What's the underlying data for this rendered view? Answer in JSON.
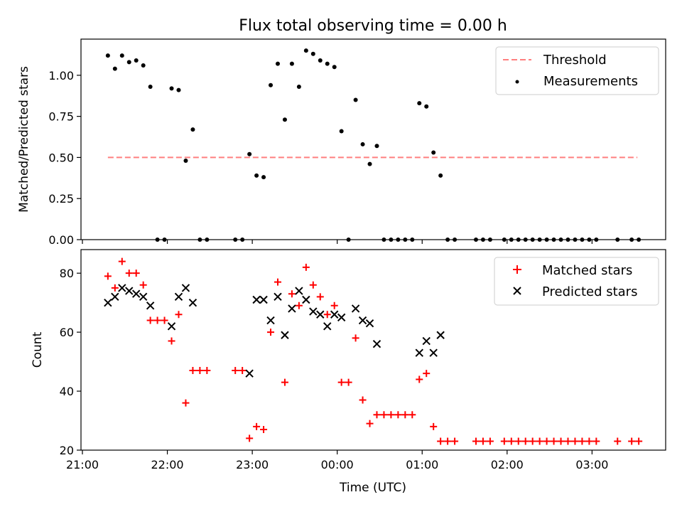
{
  "title": "Flux total observing time = 0.00 h",
  "colors": {
    "threshold": "#ff7f7f",
    "measurement": "#000000",
    "matched": "#ff0000",
    "predicted": "#000000"
  },
  "chart_data": [
    {
      "type": "scatter",
      "title": "Flux total observing time = 0.00 h",
      "xlabel": "",
      "ylabel": "Matched/Predicted stars",
      "xlim": [
        "2021-01-01T20:59",
        "2021-01-02T03:52"
      ],
      "ylim": [
        0,
        1.22
      ],
      "yticks": [
        0.0,
        0.25,
        0.5,
        0.75,
        1.0
      ],
      "ytick_labels": [
        "0.00",
        "0.25",
        "0.50",
        "0.75",
        "1.00"
      ],
      "legend": {
        "position": "top-right",
        "entries": [
          "Threshold",
          "Measurements"
        ]
      },
      "threshold": {
        "name": "Threshold",
        "y": 0.5,
        "x_start": "21:18",
        "x_end": "03:32"
      },
      "series": [
        {
          "name": "Measurements",
          "marker": "dot",
          "points": [
            [
              "21:18",
              1.12
            ],
            [
              "21:23",
              1.04
            ],
            [
              "21:28",
              1.12
            ],
            [
              "21:33",
              1.08
            ],
            [
              "21:38",
              1.09
            ],
            [
              "21:43",
              1.06
            ],
            [
              "21:48",
              0.93
            ],
            [
              "21:53",
              0.0
            ],
            [
              "21:58",
              0.0
            ],
            [
              "22:03",
              0.92
            ],
            [
              "22:08",
              0.91
            ],
            [
              "22:13",
              0.48
            ],
            [
              "22:18",
              0.67
            ],
            [
              "22:23",
              0.0
            ],
            [
              "22:28",
              0.0
            ],
            [
              "22:48",
              0.0
            ],
            [
              "22:53",
              0.0
            ],
            [
              "22:58",
              0.52
            ],
            [
              "23:03",
              0.39
            ],
            [
              "23:08",
              0.38
            ],
            [
              "23:13",
              0.94
            ],
            [
              "23:18",
              1.07
            ],
            [
              "23:23",
              0.73
            ],
            [
              "23:28",
              1.07
            ],
            [
              "23:33",
              0.93
            ],
            [
              "23:38",
              1.15
            ],
            [
              "23:43",
              1.13
            ],
            [
              "23:48",
              1.09
            ],
            [
              "23:53",
              1.07
            ],
            [
              "23:58",
              1.05
            ],
            [
              "00:03",
              0.66
            ],
            [
              "00:08",
              0.0
            ],
            [
              "00:13",
              0.85
            ],
            [
              "00:18",
              0.58
            ],
            [
              "00:23",
              0.46
            ],
            [
              "00:28",
              0.57
            ],
            [
              "00:33",
              0.0
            ],
            [
              "00:38",
              0.0
            ],
            [
              "00:43",
              0.0
            ],
            [
              "00:48",
              0.0
            ],
            [
              "00:53",
              0.0
            ],
            [
              "00:58",
              0.83
            ],
            [
              "01:03",
              0.81
            ],
            [
              "01:08",
              0.53
            ],
            [
              "01:13",
              0.39
            ],
            [
              "01:18",
              0.0
            ],
            [
              "01:23",
              0.0
            ],
            [
              "01:38",
              0.0
            ],
            [
              "01:43",
              0.0
            ],
            [
              "01:48",
              0.0
            ],
            [
              "01:58",
              0.0
            ],
            [
              "02:03",
              0.0
            ],
            [
              "02:08",
              0.0
            ],
            [
              "02:13",
              0.0
            ],
            [
              "02:18",
              0.0
            ],
            [
              "02:23",
              0.0
            ],
            [
              "02:28",
              0.0
            ],
            [
              "02:33",
              0.0
            ],
            [
              "02:38",
              0.0
            ],
            [
              "02:43",
              0.0
            ],
            [
              "02:48",
              0.0
            ],
            [
              "02:53",
              0.0
            ],
            [
              "02:58",
              0.0
            ],
            [
              "03:03",
              0.0
            ],
            [
              "03:18",
              0.0
            ],
            [
              "03:28",
              0.0
            ],
            [
              "03:33",
              0.0
            ]
          ]
        }
      ]
    },
    {
      "type": "scatter",
      "title": "",
      "xlabel": "Time (UTC)",
      "ylabel": "Count",
      "xlim": [
        "2021-01-01T20:59",
        "2021-01-02T03:52"
      ],
      "ylim": [
        20,
        88
      ],
      "yticks": [
        20,
        40,
        60,
        80
      ],
      "ytick_labels": [
        "20",
        "40",
        "60",
        "80"
      ],
      "xticks": [
        "21:00",
        "22:00",
        "23:00",
        "00:00",
        "01:00",
        "02:00",
        "03:00"
      ],
      "legend": {
        "position": "top-right",
        "entries": [
          "Matched stars",
          "Predicted stars"
        ]
      },
      "series": [
        {
          "name": "Matched stars",
          "marker": "plus",
          "points": [
            [
              "21:18",
              79
            ],
            [
              "21:23",
              75
            ],
            [
              "21:28",
              84
            ],
            [
              "21:33",
              80
            ],
            [
              "21:38",
              80
            ],
            [
              "21:43",
              76
            ],
            [
              "21:48",
              64
            ],
            [
              "21:53",
              64
            ],
            [
              "21:58",
              64
            ],
            [
              "22:03",
              57
            ],
            [
              "22:08",
              66
            ],
            [
              "22:13",
              36
            ],
            [
              "22:18",
              47
            ],
            [
              "22:23",
              47
            ],
            [
              "22:28",
              47
            ],
            [
              "22:48",
              47
            ],
            [
              "22:53",
              47
            ],
            [
              "22:58",
              24
            ],
            [
              "23:03",
              28
            ],
            [
              "23:08",
              27
            ],
            [
              "23:13",
              60
            ],
            [
              "23:18",
              77
            ],
            [
              "23:23",
              43
            ],
            [
              "23:28",
              73
            ],
            [
              "23:33",
              69
            ],
            [
              "23:38",
              82
            ],
            [
              "23:43",
              76
            ],
            [
              "23:48",
              72
            ],
            [
              "23:53",
              66
            ],
            [
              "23:58",
              69
            ],
            [
              "00:03",
              43
            ],
            [
              "00:08",
              43
            ],
            [
              "00:13",
              58
            ],
            [
              "00:18",
              37
            ],
            [
              "00:23",
              29
            ],
            [
              "00:28",
              32
            ],
            [
              "00:33",
              32
            ],
            [
              "00:38",
              32
            ],
            [
              "00:43",
              32
            ],
            [
              "00:48",
              32
            ],
            [
              "00:53",
              32
            ],
            [
              "00:58",
              44
            ],
            [
              "01:03",
              46
            ],
            [
              "01:08",
              28
            ],
            [
              "01:13",
              23
            ],
            [
              "01:18",
              23
            ],
            [
              "01:23",
              23
            ],
            [
              "01:38",
              23
            ],
            [
              "01:43",
              23
            ],
            [
              "01:48",
              23
            ],
            [
              "01:58",
              23
            ],
            [
              "02:03",
              23
            ],
            [
              "02:08",
              23
            ],
            [
              "02:13",
              23
            ],
            [
              "02:18",
              23
            ],
            [
              "02:23",
              23
            ],
            [
              "02:28",
              23
            ],
            [
              "02:33",
              23
            ],
            [
              "02:38",
              23
            ],
            [
              "02:43",
              23
            ],
            [
              "02:48",
              23
            ],
            [
              "02:53",
              23
            ],
            [
              "02:58",
              23
            ],
            [
              "03:03",
              23
            ],
            [
              "03:18",
              23
            ],
            [
              "03:28",
              23
            ],
            [
              "03:33",
              23
            ]
          ]
        },
        {
          "name": "Predicted stars",
          "marker": "x",
          "points": [
            [
              "21:18",
              70
            ],
            [
              "21:23",
              72
            ],
            [
              "21:28",
              75
            ],
            [
              "21:33",
              74
            ],
            [
              "21:38",
              73
            ],
            [
              "21:43",
              72
            ],
            [
              "21:48",
              69
            ],
            [
              "22:03",
              62
            ],
            [
              "22:08",
              72
            ],
            [
              "22:13",
              75
            ],
            [
              "22:18",
              70
            ],
            [
              "22:58",
              46
            ],
            [
              "23:03",
              71
            ],
            [
              "23:08",
              71
            ],
            [
              "23:13",
              64
            ],
            [
              "23:18",
              72
            ],
            [
              "23:23",
              59
            ],
            [
              "23:28",
              68
            ],
            [
              "23:33",
              74
            ],
            [
              "23:38",
              71
            ],
            [
              "23:43",
              67
            ],
            [
              "23:48",
              66
            ],
            [
              "23:53",
              62
            ],
            [
              "23:58",
              66
            ],
            [
              "00:03",
              65
            ],
            [
              "00:13",
              68
            ],
            [
              "00:18",
              64
            ],
            [
              "00:23",
              63
            ],
            [
              "00:28",
              56
            ],
            [
              "00:58",
              53
            ],
            [
              "01:03",
              57
            ],
            [
              "01:08",
              53
            ],
            [
              "01:13",
              59
            ]
          ]
        }
      ]
    }
  ]
}
